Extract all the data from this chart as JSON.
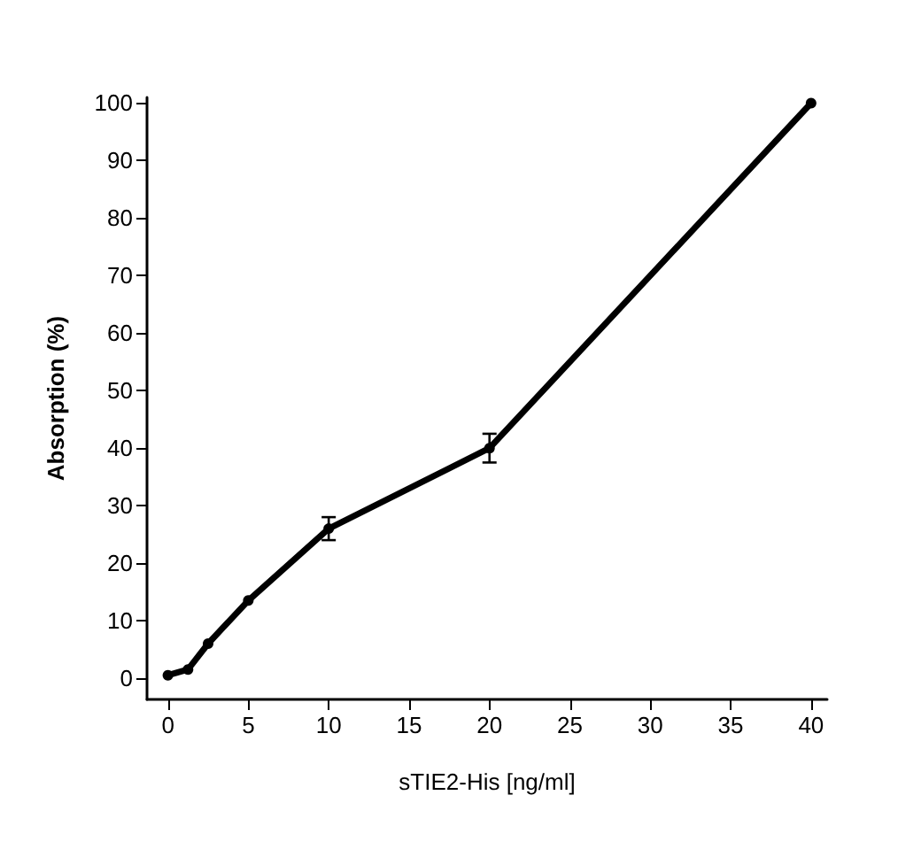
{
  "chart_data": {
    "type": "line",
    "xlabel": "sTIE2-His [ng/ml]",
    "ylabel": "Absorption (%)",
    "x": [
      0,
      1.25,
      2.5,
      5,
      10,
      20,
      40
    ],
    "series": [
      {
        "color": "#000000",
        "values": [
          0.5,
          1.5,
          6,
          13.5,
          26,
          40,
          100
        ],
        "errors": [
          null,
          null,
          null,
          null,
          2,
          2.5,
          null
        ]
      }
    ],
    "xlim": [
      -1.3,
      41
    ],
    "ylim": [
      -3.7,
      101
    ],
    "xticks": [
      0,
      5,
      10,
      15,
      20,
      25,
      30,
      35,
      40
    ],
    "yticks": [
      0,
      10,
      20,
      30,
      40,
      50,
      60,
      70,
      80,
      90,
      100
    ],
    "grid": false,
    "marker": "circle",
    "line_style": "solid"
  }
}
